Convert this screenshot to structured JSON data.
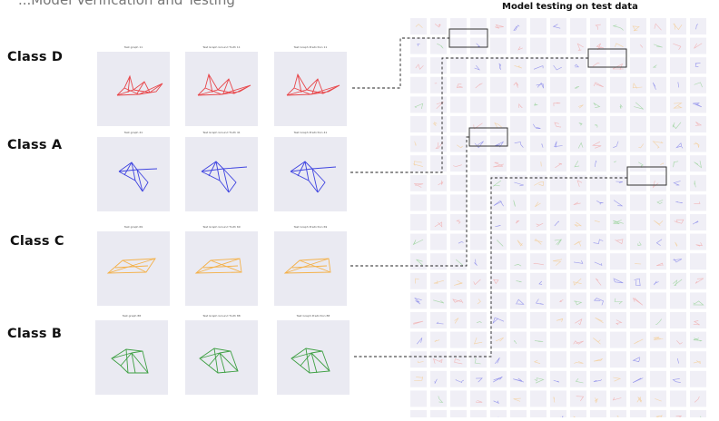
{
  "header": {
    "cutoff_title": "...Model Verification and Testing",
    "grid_title": "Model testing on test data"
  },
  "classes": [
    {
      "label": "Class D",
      "color": "#e8474b",
      "panel_titles": [
        "Test graph 11",
        "Test Graph Ground Truth 11",
        "Test Graph Prediction 11"
      ]
    },
    {
      "label": "Class A",
      "color": "#3f44e0",
      "panel_titles": [
        "Test graph 41",
        "Test Graph Ground Truth 41",
        "Test Graph Prediction 41"
      ]
    },
    {
      "label": "Class C",
      "color": "#f4b14a",
      "panel_titles": [
        "Test graph 69",
        "Test Graph Ground Truth 69",
        "Test Graph Prediction 69"
      ]
    },
    {
      "label": "Class B",
      "color": "#3fa044",
      "panel_titles": [
        "Test graph 88",
        "Test Graph Ground Truth 88",
        "Test Graph Prediction 88"
      ]
    }
  ],
  "thumbnail_grid": {
    "rows": 21,
    "cols": 15,
    "palette": [
      "#7a7ae8",
      "#f2a3a3",
      "#f4c98b",
      "#8fcf8f"
    ]
  },
  "colors": {
    "panel_bg": "#eaeaf2",
    "thumb_bg": "#f0eff6",
    "highlight_box": "#333333",
    "connector": "#222222"
  }
}
